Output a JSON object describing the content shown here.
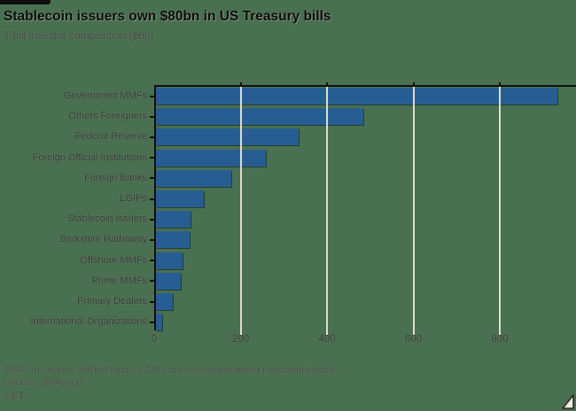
{
  "header": {
    "title": "Stablecoin issuers own $80bn in US Treasury bills",
    "subtitle": "T-bill investor composition ($bn)"
  },
  "chart_data": {
    "type": "bar",
    "orientation": "horizontal",
    "title": "Stablecoin issuers own $80bn in US Treasury bills",
    "subtitle": "T-bill investor composition ($bn)",
    "unit": "$bn",
    "categories": [
      "Government MMFs",
      "Others Foreigners",
      "Federal Reserve",
      "Foreign Official Institutions",
      "Foreign Banks",
      "LGIPs",
      "Stablecoin Issuers",
      "Berkshire Hathaway",
      "Offshore MMFs",
      "Prime MMFs",
      "Primary Dealers",
      "International Organizations"
    ],
    "values": [
      930,
      480,
      330,
      255,
      175,
      110,
      80,
      77,
      62,
      58,
      38,
      15
    ],
    "x_ticks": [
      0,
      200,
      400,
      600,
      800
    ],
    "xlim": [
      0,
      975
    ],
    "grid": "vertical",
    "legend": "none",
    "bar_color": "#265e94"
  },
  "footer": {
    "note": "MMF are money market funds. LGIPs are local government investment pools.",
    "source": "Source: JPMorgan",
    "credit": "©FT"
  },
  "colors": {
    "background": "#497050",
    "bar": "#265e94",
    "gridline": "#e9e5da",
    "axis": "#111111"
  }
}
